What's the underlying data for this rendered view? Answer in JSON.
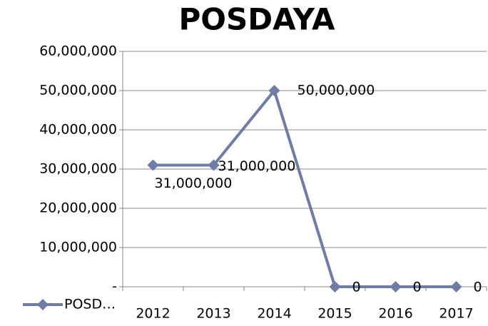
{
  "chart_data": {
    "type": "line",
    "title": "POSDAYA",
    "categories": [
      "2012",
      "2013",
      "2014",
      "2015",
      "2016",
      "2017"
    ],
    "series": [
      {
        "name": "POSD…",
        "color": "#6f7ca6",
        "values": [
          31000000,
          31000000,
          50000000,
          0,
          0,
          0
        ],
        "value_labels": [
          "31,000,000",
          "31,000,000",
          "50,000,000",
          "0",
          "0",
          "0"
        ]
      }
    ],
    "ylim": [
      0,
      60000000
    ],
    "yticks": [
      {
        "value": 0,
        "label": "-"
      },
      {
        "value": 10000000,
        "label": "10,000,000"
      },
      {
        "value": 20000000,
        "label": "20,000,000"
      },
      {
        "value": 30000000,
        "label": "30,000,000"
      },
      {
        "value": 40000000,
        "label": "40,000,000"
      },
      {
        "value": 50000000,
        "label": "50,000,000"
      },
      {
        "value": 60000000,
        "label": "60,000,000"
      }
    ],
    "grid": true,
    "legend": "bottom-left"
  }
}
